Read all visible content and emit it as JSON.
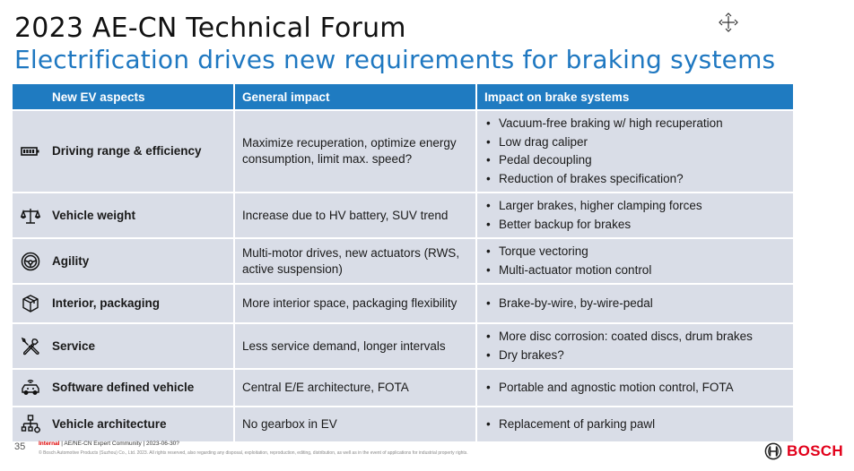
{
  "slide": {
    "title": "2023 AE-CN Technical Forum",
    "subtitle": "Electrification drives new requirements for braking systems",
    "page_number": "35"
  },
  "table": {
    "headers": [
      "New EV aspects",
      "General impact",
      "Impact on brake systems"
    ],
    "rows": [
      {
        "icon": "battery-icon",
        "aspect": "Driving range & efficiency",
        "general": "Maximize recuperation, optimize energy consumption, limit max. speed?",
        "brake": [
          "Vacuum-free braking w/ high recuperation",
          "Low drag caliper",
          "Pedal decoupling",
          "Reduction of brakes specification?"
        ]
      },
      {
        "icon": "scale-icon",
        "aspect": "Vehicle weight",
        "general": "Increase due to HV battery, SUV trend",
        "brake": [
          "Larger brakes, higher clamping forces",
          "Better backup for brakes"
        ]
      },
      {
        "icon": "steering-wheel-icon",
        "aspect": "Agility",
        "general": "Multi-motor drives, new actuators (RWS, active suspension)",
        "brake": [
          "Torque vectoring",
          "Multi-actuator motion control"
        ]
      },
      {
        "icon": "package-icon",
        "aspect": "Interior, packaging",
        "general": "More interior space, packaging flexibility",
        "brake": [
          "Brake-by-wire, by-wire-pedal"
        ]
      },
      {
        "icon": "wrench-screwdriver-icon",
        "aspect": "Service",
        "general": "Less service demand, longer intervals",
        "brake": [
          "More disc corrosion: coated discs, drum brakes",
          "Dry brakes?"
        ]
      },
      {
        "icon": "connected-car-icon",
        "aspect": "Software defined vehicle",
        "general": "Central E/E architecture, FOTA",
        "brake": [
          "Portable and agnostic motion control, FOTA"
        ]
      },
      {
        "icon": "architecture-icon",
        "aspect": "Vehicle architecture",
        "general": "No gearbox in EV",
        "brake": [
          "Replacement of parking pawl"
        ]
      }
    ]
  },
  "footer": {
    "classification": "Internal",
    "line1": " | AE/NE-CN Expert Community | 2023-06-30?",
    "line2": "© Bosch Automotive Products (Suzhou) Co., Ltd. 2023. All rights reserved, also regarding any disposal, exploitation, reproduction, editing, distribution, as well as in the event of applications for industrial property rights.",
    "brand": "BOSCH"
  },
  "colors": {
    "header_blue": "#1f7bc1",
    "subtitle_blue": "#1f78c1",
    "row_bg": "#d9dde7",
    "brand_red": "#e2001a"
  }
}
